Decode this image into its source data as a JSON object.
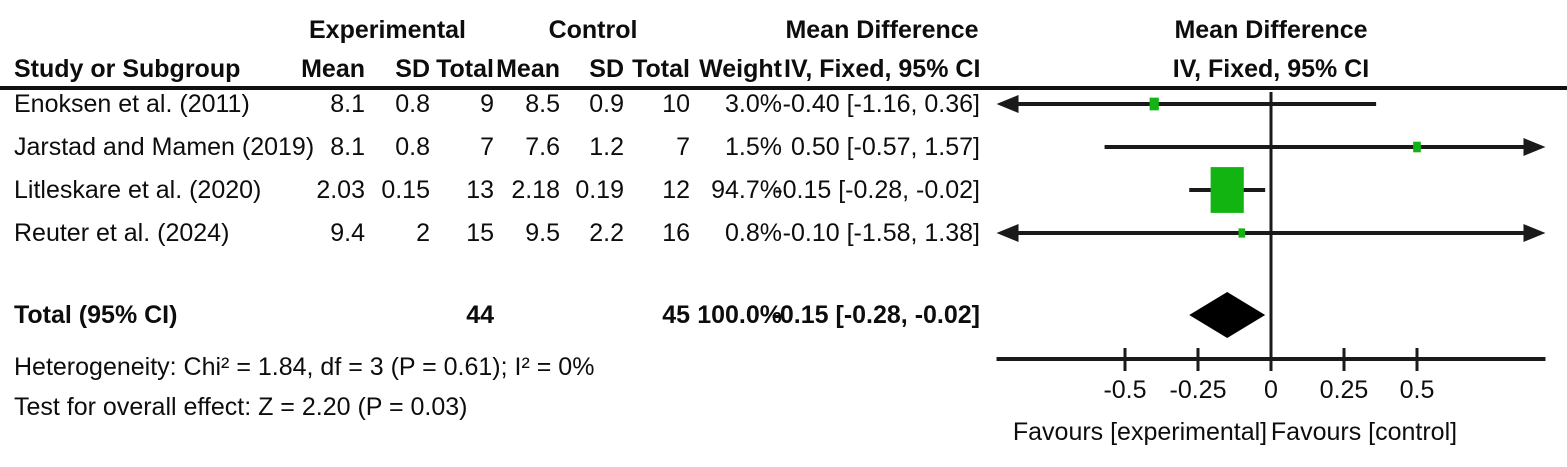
{
  "table": {
    "group_headers": {
      "experimental": "Experimental",
      "control": "Control",
      "mean_difference_1": "Mean Difference",
      "mean_difference_2": "Mean Difference"
    },
    "col_headers": {
      "study": "Study or Subgroup",
      "mean_exp": "Mean",
      "sd_exp": "SD",
      "total_exp": "Total",
      "mean_ctl": "Mean",
      "sd_ctl": "SD",
      "total_ctl": "Total",
      "weight": "Weight",
      "ci_1": "IV, Fixed, 95% CI",
      "ci_2": "IV, Fixed, 95% CI"
    },
    "rows": [
      {
        "study": "Enoksen et al. (2011)",
        "mean_exp": "8.1",
        "sd_exp": "0.8",
        "total_exp": "9",
        "mean_ctl": "8.5",
        "sd_ctl": "0.9",
        "total_ctl": "10",
        "weight": "3.0%",
        "ci": "-0.40 [-1.16, 0.36]"
      },
      {
        "study": "Jarstad and Mamen (2019)",
        "mean_exp": "8.1",
        "sd_exp": "0.8",
        "total_exp": "7",
        "mean_ctl": "7.6",
        "sd_ctl": "1.2",
        "total_ctl": "7",
        "weight": "1.5%",
        "ci": "0.50 [-0.57, 1.57]"
      },
      {
        "study": "Litleskare et al. (2020)",
        "mean_exp": "2.03",
        "sd_exp": "0.15",
        "total_exp": "13",
        "mean_ctl": "2.18",
        "sd_ctl": "0.19",
        "total_ctl": "12",
        "weight": "94.7%",
        "ci": "-0.15 [-0.28, -0.02]"
      },
      {
        "study": "Reuter et al. (2024)",
        "mean_exp": "9.4",
        "sd_exp": "2",
        "total_exp": "15",
        "mean_ctl": "9.5",
        "sd_ctl": "2.2",
        "total_ctl": "16",
        "weight": "0.8%",
        "ci": "-0.10 [-1.58, 1.38]"
      }
    ],
    "total_row": {
      "label": "Total (95% CI)",
      "total_exp": "44",
      "total_ctl": "45",
      "weight": "100.0%",
      "ci": "-0.15 [-0.28, -0.02]"
    },
    "heterogeneity": "Heterogeneity: Chi² = 1.84, df = 3 (P = 0.61); I² = 0%",
    "overall_effect": "Test for overall effect: Z = 2.20 (P = 0.03)"
  },
  "chart_data": {
    "type": "scatter",
    "subtype": "forest-plot",
    "title": "Mean Difference  IV, Fixed, 95% CI",
    "effect_measure": "Mean Difference",
    "model": "IV, Fixed, 95% CI",
    "x_axis": {
      "ticks": [
        -0.5,
        -0.25,
        0,
        0.25,
        0.5
      ],
      "tick_labels": [
        "-0.5",
        "-0.25",
        "0",
        "0.25",
        "0.5"
      ],
      "xlim": [
        -0.94,
        0.94
      ],
      "label_left": "Favours [experimental]",
      "label_right": "Favours [control]"
    },
    "studies": [
      {
        "name": "Enoksen et al. (2011)",
        "md": -0.4,
        "ci_lower": -1.16,
        "ci_upper": 0.36,
        "weight": 3.0
      },
      {
        "name": "Jarstad and Mamen (2019)",
        "md": 0.5,
        "ci_lower": -0.57,
        "ci_upper": 1.57,
        "weight": 1.5
      },
      {
        "name": "Litleskare et al. (2020)",
        "md": -0.15,
        "ci_lower": -0.28,
        "ci_upper": -0.02,
        "weight": 94.7
      },
      {
        "name": "Reuter et al. (2024)",
        "md": -0.1,
        "ci_lower": -1.58,
        "ci_upper": 1.38,
        "weight": 0.8
      }
    ],
    "total": {
      "name": "Total (95% CI)",
      "md": -0.15,
      "ci_lower": -0.28,
      "ci_upper": -0.02,
      "weight": 100.0
    },
    "heterogeneity": {
      "chi2": 1.84,
      "df": 3,
      "p": 0.61,
      "i2_pct": 0
    },
    "overall_effect": {
      "z": 2.2,
      "p": 0.03
    },
    "marker_color": "#12b412",
    "diamond_color": "#000000",
    "line_color": "#1a1a1a"
  }
}
